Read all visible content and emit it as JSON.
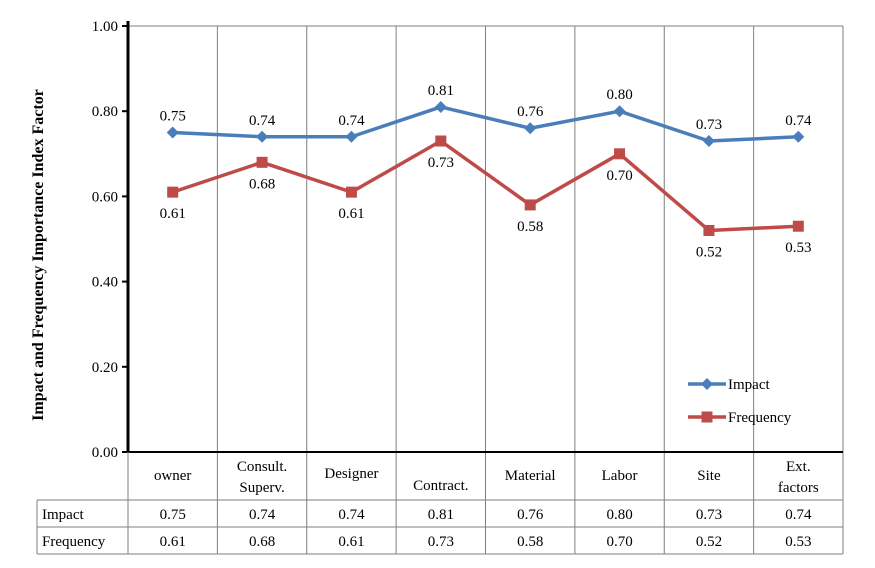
{
  "chart_data": {
    "type": "line",
    "ylabel": "Impact and Frequency Importance Index Factor",
    "ylim": [
      0,
      1
    ],
    "yticks": [
      "0.00",
      "0.20",
      "0.40",
      "0.60",
      "0.80",
      "1.00"
    ],
    "yticks_values": [
      0,
      0.2,
      0.4,
      0.6,
      0.8,
      1.0
    ],
    "grid": "vertical category dividers",
    "legend": "bottom-right",
    "categories": [
      [
        "owner"
      ],
      [
        "Consult.",
        "Superv."
      ],
      [
        "Designer"
      ],
      [
        "Contract."
      ],
      [
        "Material"
      ],
      [
        "Labor"
      ],
      [
        "Site"
      ],
      [
        "Ext.",
        "factors"
      ]
    ],
    "series": [
      {
        "name": "Impact",
        "color": "#4a7ebb",
        "marker": "diamond",
        "values": [
          0.75,
          0.74,
          0.74,
          0.81,
          0.76,
          0.8,
          0.73,
          0.74
        ],
        "labels": [
          "0.75",
          "0.74",
          "0.74",
          "0.81",
          "0.76",
          "0.80",
          "0.73",
          "0.74"
        ]
      },
      {
        "name": "Frequency",
        "color": "#be4b48",
        "marker": "square",
        "values": [
          0.61,
          0.68,
          0.61,
          0.73,
          0.58,
          0.7,
          0.52,
          0.53
        ],
        "labels": [
          "0.61",
          "0.68",
          "0.61",
          "0.73",
          "0.58",
          "0.70",
          "0.52",
          "0.53"
        ]
      }
    ]
  }
}
